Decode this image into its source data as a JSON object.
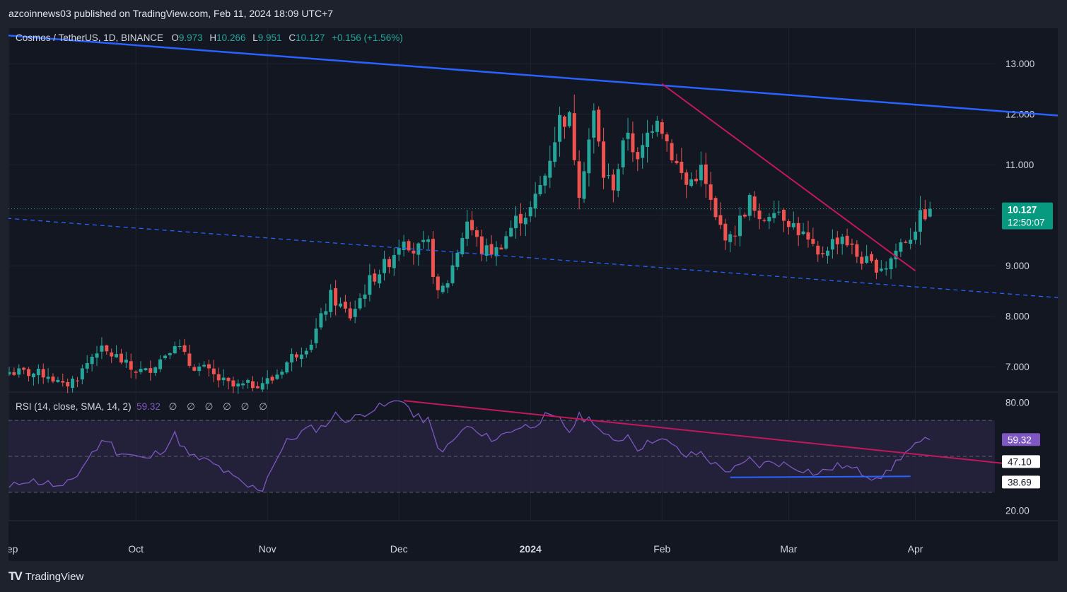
{
  "header": {
    "published": "azcoinnews03 published on TradingView.com, Feb 11, 2024 18:09 UTC+7"
  },
  "legend": {
    "symbol": "Cosmos / TetherUS, 1D, BINANCE",
    "o_label": "O",
    "o": "9.973",
    "h_label": "H",
    "h": "10.266",
    "l_label": "L",
    "l": "9.951",
    "c_label": "C",
    "c": "10.127",
    "change": "+0.156 (+1.56%)"
  },
  "price_badge": {
    "price": "10.127",
    "countdown": "12:50:07"
  },
  "rsi_legend": {
    "label": "RSI (14, close, SMA, 14, 2)",
    "value": "59.32",
    "placeholders": "∅ ∅ ∅ ∅ ∅ ∅"
  },
  "rsi_badges": {
    "rsi": "59.32",
    "sma": "47.10",
    "bb": "38.69"
  },
  "footer": {
    "brand": "TradingView"
  },
  "colors": {
    "up": "#26a69a",
    "down": "#ef5350",
    "trend_blue": "#2962ff",
    "trend_pink": "#c2185b",
    "rsi_line": "#7e57c2"
  },
  "chart_data": [
    {
      "type": "candlestick",
      "title": "Cosmos / TetherUS, 1D, BINANCE",
      "ylim": [
        6.5,
        13.7
      ],
      "y_ticks": [
        "13.000",
        "12.000",
        "11.000",
        "10.000",
        "9.000",
        "8.000",
        "7.000"
      ],
      "x_ticks": [
        "Sep",
        "Oct",
        "Nov",
        "Dec",
        "2024",
        "Feb",
        "Mar",
        "Apr"
      ],
      "anchor_closes": [
        [
          0,
          6.9
        ],
        [
          8,
          6.85
        ],
        [
          11,
          6.6
        ],
        [
          14,
          6.8
        ],
        [
          18,
          7.35
        ],
        [
          22,
          7.2
        ],
        [
          25,
          6.95
        ],
        [
          28,
          6.9
        ],
        [
          31,
          7.15
        ],
        [
          34,
          7.5
        ],
        [
          37,
          7.05
        ],
        [
          40,
          6.95
        ],
        [
          43,
          6.75
        ],
        [
          46,
          6.6
        ],
        [
          50,
          6.65
        ],
        [
          54,
          6.75
        ],
        [
          58,
          7.2
        ],
        [
          62,
          7.5
        ],
        [
          66,
          8.4
        ],
        [
          70,
          8.0
        ],
        [
          74,
          8.7
        ],
        [
          78,
          9.1
        ],
        [
          81,
          9.6
        ],
        [
          83,
          9.3
        ],
        [
          86,
          9.4
        ],
        [
          88,
          8.4
        ],
        [
          90,
          8.7
        ],
        [
          94,
          9.9
        ],
        [
          97,
          9.3
        ],
        [
          100,
          9.3
        ],
        [
          104,
          9.9
        ],
        [
          107,
          10.1
        ],
        [
          110,
          10.8
        ],
        [
          113,
          11.9
        ],
        [
          115,
          11.9
        ],
        [
          117,
          10.5
        ],
        [
          120,
          12.0
        ],
        [
          122,
          10.8
        ],
        [
          124,
          10.6
        ],
        [
          127,
          11.7
        ],
        [
          129,
          11.0
        ],
        [
          131,
          11.6
        ],
        [
          133,
          12.0
        ],
        [
          136,
          11.2
        ],
        [
          139,
          10.6
        ],
        [
          142,
          10.9
        ],
        [
          145,
          9.9
        ],
        [
          148,
          9.5
        ],
        [
          150,
          9.9
        ],
        [
          152,
          10.3
        ],
        [
          154,
          9.8
        ],
        [
          157,
          10.2
        ],
        [
          160,
          9.9
        ],
        [
          163,
          9.6
        ],
        [
          166,
          9.15
        ],
        [
          168,
          9.4
        ],
        [
          171,
          9.6
        ],
        [
          174,
          9.2
        ],
        [
          177,
          9.0
        ],
        [
          180,
          9.0
        ],
        [
          183,
          9.45
        ],
        [
          185,
          9.6
        ],
        [
          187,
          9.95
        ],
        [
          189,
          10.13
        ]
      ],
      "last_close": 10.127,
      "trendlines": [
        {
          "name": "upper-trend",
          "style": "solid",
          "from": [
            -2,
            13.57
          ],
          "to": [
            266,
            11.6
          ]
        },
        {
          "name": "lower-channel",
          "style": "dashed",
          "from": [
            -2,
            9.95
          ],
          "to": [
            266,
            8.0
          ]
        },
        {
          "name": "pink-downtrend",
          "style": "solid",
          "from": [
            134,
            12.6
          ],
          "to": [
            186,
            8.9
          ]
        }
      ]
    },
    {
      "type": "line",
      "title": "RSI (14, close, SMA, 14, 2)",
      "ylim": [
        15,
        85
      ],
      "y_ticks": [
        "80.00",
        "20.00"
      ],
      "band": [
        30,
        70
      ],
      "midline": 50,
      "anchors": [
        [
          0,
          32
        ],
        [
          3,
          37
        ],
        [
          8,
          35
        ],
        [
          11,
          32
        ],
        [
          14,
          40
        ],
        [
          17,
          52
        ],
        [
          20,
          60
        ],
        [
          22,
          53
        ],
        [
          26,
          50
        ],
        [
          28,
          48
        ],
        [
          32,
          55
        ],
        [
          34,
          62
        ],
        [
          37,
          50
        ],
        [
          40,
          48
        ],
        [
          43,
          44
        ],
        [
          46,
          38
        ],
        [
          49,
          33
        ],
        [
          52,
          32
        ],
        [
          54,
          45
        ],
        [
          57,
          58
        ],
        [
          61,
          65
        ],
        [
          64,
          66
        ],
        [
          67,
          73
        ],
        [
          70,
          70
        ],
        [
          74,
          76
        ],
        [
          77,
          78
        ],
        [
          81,
          82
        ],
        [
          83,
          72
        ],
        [
          86,
          70
        ],
        [
          88,
          54
        ],
        [
          90,
          55
        ],
        [
          94,
          67
        ],
        [
          97,
          61
        ],
        [
          100,
          60
        ],
        [
          104,
          66
        ],
        [
          107,
          67
        ],
        [
          110,
          72
        ],
        [
          113,
          70
        ],
        [
          115,
          64
        ],
        [
          117,
          72
        ],
        [
          120,
          70
        ],
        [
          122,
          62
        ],
        [
          124,
          58
        ],
        [
          127,
          62
        ],
        [
          129,
          55
        ],
        [
          131,
          57
        ],
        [
          133,
          61
        ],
        [
          136,
          56
        ],
        [
          139,
          50
        ],
        [
          142,
          52
        ],
        [
          145,
          45
        ],
        [
          148,
          42
        ],
        [
          150,
          44
        ],
        [
          152,
          48
        ],
        [
          154,
          45
        ],
        [
          157,
          47
        ],
        [
          160,
          45
        ],
        [
          163,
          43
        ],
        [
          166,
          40
        ],
        [
          168,
          43
        ],
        [
          171,
          45
        ],
        [
          174,
          42
        ],
        [
          177,
          39
        ],
        [
          180,
          40
        ],
        [
          183,
          50
        ],
        [
          185,
          54
        ],
        [
          187,
          57
        ],
        [
          189,
          59.3
        ]
      ],
      "trendlines": [
        {
          "name": "rsi-downtrend",
          "from": [
            81,
            81
          ],
          "to": [
            208,
            45
          ]
        },
        {
          "name": "rsi-support",
          "from": [
            148,
            38.3
          ],
          "to": [
            185,
            38.9
          ]
        }
      ]
    }
  ]
}
